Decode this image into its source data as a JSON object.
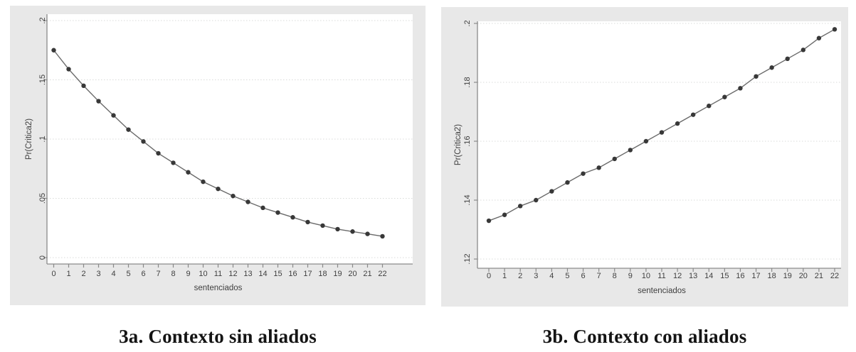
{
  "page": {
    "background": "#ffffff"
  },
  "colors": {
    "panel_bg": "#e8e8e8",
    "plot_bg": "#ffffff",
    "grid": "#d9dbd9",
    "axis": "#8a8a8a",
    "text": "#3f3f3f",
    "line": "#6a6a6a",
    "marker": "#383838"
  },
  "chart_data": [
    {
      "type": "line",
      "title": "3a. Contexto sin aliados",
      "xlabel": "sentenciados",
      "ylabel": "Pr(Critica2)",
      "x": [
        0,
        1,
        2,
        3,
        4,
        5,
        6,
        7,
        8,
        9,
        10,
        11,
        12,
        13,
        14,
        15,
        16,
        17,
        18,
        19,
        20,
        21,
        22
      ],
      "values": [
        0.175,
        0.159,
        0.145,
        0.132,
        0.12,
        0.108,
        0.098,
        0.088,
        0.08,
        0.072,
        0.064,
        0.058,
        0.052,
        0.047,
        0.042,
        0.038,
        0.034,
        0.03,
        0.027,
        0.024,
        0.022,
        0.02,
        0.018
      ],
      "xlim": [
        0,
        22
      ],
      "ylim": [
        0,
        0.2
      ],
      "yticks": [
        0,
        0.05,
        0.1,
        0.15,
        0.2
      ],
      "ytick_labels": [
        "0",
        ".05",
        ".1",
        ".15",
        ".2"
      ],
      "xticks": [
        0,
        1,
        2,
        3,
        4,
        5,
        6,
        7,
        8,
        9,
        10,
        11,
        12,
        13,
        14,
        15,
        16,
        17,
        18,
        19,
        20,
        21,
        22
      ],
      "grid": true,
      "legend": "none",
      "marker": "circle"
    },
    {
      "type": "line",
      "title": "3b. Contexto con aliados",
      "xlabel": "sentenciados",
      "ylabel": "Pr(Critica2)",
      "x": [
        0,
        1,
        2,
        3,
        4,
        5,
        6,
        7,
        8,
        9,
        10,
        11,
        12,
        13,
        14,
        15,
        16,
        17,
        18,
        19,
        20,
        21,
        22
      ],
      "values": [
        0.133,
        0.135,
        0.138,
        0.14,
        0.143,
        0.146,
        0.149,
        0.151,
        0.154,
        0.157,
        0.16,
        0.163,
        0.166,
        0.169,
        0.172,
        0.175,
        0.178,
        0.182,
        0.185,
        0.188,
        0.191,
        0.195,
        0.198
      ],
      "xlim": [
        0,
        22
      ],
      "ylim": [
        0.12,
        0.2
      ],
      "yticks": [
        0.12,
        0.14,
        0.16,
        0.18,
        0.2
      ],
      "ytick_labels": [
        ".12",
        ".14",
        ".16",
        ".18",
        ".2"
      ],
      "xticks": [
        0,
        1,
        2,
        3,
        4,
        5,
        6,
        7,
        8,
        9,
        10,
        11,
        12,
        13,
        14,
        15,
        16,
        17,
        18,
        19,
        20,
        21,
        22
      ],
      "grid": true,
      "legend": "none",
      "marker": "circle"
    }
  ]
}
